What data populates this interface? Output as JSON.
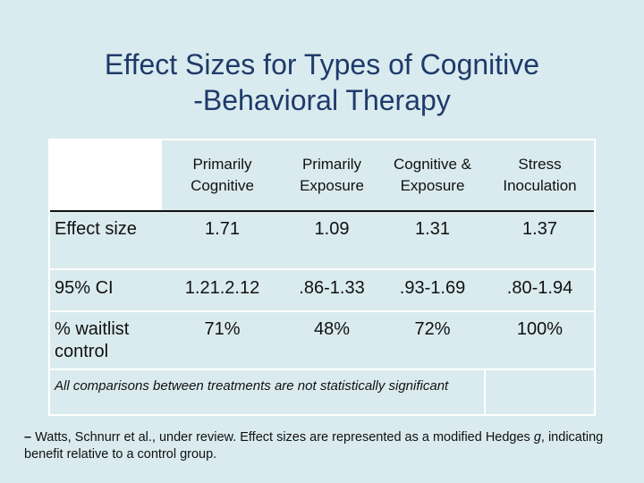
{
  "title": {
    "line1": "Effect Sizes for Types of Cognitive",
    "line2": "-Behavioral Therapy"
  },
  "table": {
    "columns": [
      "Primarily\nCognitive",
      "Primarily\nExposure",
      "Cognitive &\nExposure",
      "Stress\nInoculation"
    ],
    "rows": [
      {
        "label": "Effect size",
        "values": [
          "1.71",
          "1.09",
          "1.31",
          "1.37"
        ]
      },
      {
        "label": "95% CI",
        "values": [
          "1.21.2.12",
          ".86-1.33",
          ".93-1.69",
          ".80-1.94"
        ]
      },
      {
        "label": "% waitlist\ncontrol",
        "values": [
          "71%",
          "48%",
          "72%",
          "100%"
        ]
      }
    ],
    "note": "All comparisons between treatments are not statistically significant"
  },
  "footnote": {
    "dash": "–",
    "text_before": " Watts, Schnurr et al., under review. Effect sizes are represented as a modified Hedges ",
    "g": "g",
    "text_after": ", indicating benefit relative to a control group."
  }
}
